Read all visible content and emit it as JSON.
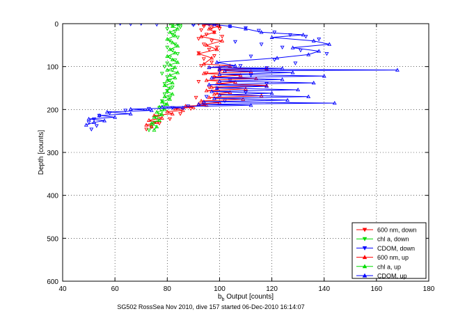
{
  "chart_data": {
    "type": "line",
    "title": "",
    "xlabel_main": "b",
    "xlabel_sub": "b",
    "xlabel_rest": " Output [counts]",
    "ylabel": "Depth [counts]",
    "footer": "SG502 RossSea Nov 2010, dive 157 started 06-Dec-2010 16:14:07",
    "xlim": [
      40,
      180
    ],
    "ylim": [
      0,
      600
    ],
    "y_reversed": true,
    "grid": true,
    "grid_style": "dotted",
    "legend_position": "bottom-right",
    "x_ticks": [
      40,
      60,
      80,
      100,
      120,
      140,
      160,
      180
    ],
    "y_ticks": [
      0,
      100,
      200,
      300,
      400,
      500,
      600
    ],
    "x_tick_labels": [
      "40",
      "60",
      "80",
      "100",
      "120",
      "140",
      "160",
      "180"
    ],
    "y_tick_labels": [
      "0",
      "100",
      "200",
      "300",
      "400",
      "500",
      "600"
    ],
    "series": [
      {
        "name": "600 nm, down",
        "color": "#ff0000",
        "marker": "triangle-down",
        "line": false,
        "points": [
          [
            92,
            0
          ],
          [
            96,
            2
          ],
          [
            99,
            4
          ],
          [
            94,
            6
          ],
          [
            97,
            10
          ],
          [
            100,
            12
          ],
          [
            93,
            15
          ],
          [
            98,
            20
          ],
          [
            95,
            25
          ],
          [
            101,
            30
          ],
          [
            92,
            35
          ],
          [
            97,
            40
          ],
          [
            94,
            48
          ],
          [
            99,
            55
          ],
          [
            96,
            60
          ],
          [
            92,
            68
          ],
          [
            98,
            75
          ],
          [
            94,
            82
          ],
          [
            97,
            90
          ],
          [
            93,
            98
          ],
          [
            100,
            105
          ],
          [
            95,
            115
          ],
          [
            98,
            125
          ],
          [
            92,
            135
          ],
          [
            96,
            148
          ],
          [
            99,
            160
          ],
          [
            91,
            172
          ],
          [
            94,
            185
          ],
          [
            89,
            198
          ],
          [
            85,
            210
          ],
          [
            81,
            222
          ],
          [
            77,
            232
          ],
          [
            74,
            240
          ],
          [
            72,
            246
          ]
        ]
      },
      {
        "name": "chl a, down",
        "color": "#00dd00",
        "marker": "triangle-down",
        "line": false,
        "points": [
          [
            81,
            0
          ],
          [
            84,
            2
          ],
          [
            82,
            4
          ],
          [
            85,
            8
          ],
          [
            80,
            12
          ],
          [
            83,
            18
          ],
          [
            82,
            25
          ],
          [
            84,
            32
          ],
          [
            81,
            40
          ],
          [
            83,
            48
          ],
          [
            80,
            55
          ],
          [
            82,
            62
          ],
          [
            84,
            70
          ],
          [
            81,
            78
          ],
          [
            83,
            85
          ],
          [
            80,
            92
          ],
          [
            79,
            100
          ],
          [
            82,
            108
          ],
          [
            78,
            116
          ],
          [
            80,
            124
          ],
          [
            81,
            132
          ],
          [
            79,
            140
          ],
          [
            82,
            148
          ],
          [
            80,
            156
          ],
          [
            79,
            164
          ],
          [
            81,
            172
          ],
          [
            78,
            180
          ],
          [
            79,
            188
          ],
          [
            77,
            196
          ],
          [
            78,
            204
          ],
          [
            77,
            212
          ],
          [
            76,
            220
          ],
          [
            75,
            230
          ],
          [
            74,
            240
          ],
          [
            73,
            248
          ]
        ]
      },
      {
        "name": "CDOM, down",
        "color": "#0000ff",
        "marker": "triangle-down",
        "line": false,
        "points": [
          [
            62,
            0
          ],
          [
            66,
            1
          ],
          [
            70,
            0
          ],
          [
            76,
            2
          ],
          [
            84,
            0
          ],
          [
            90,
            3
          ],
          [
            96,
            2
          ],
          [
            104,
            6
          ],
          [
            110,
            10
          ],
          [
            115,
            16
          ],
          [
            121,
            20
          ],
          [
            127,
            26
          ],
          [
            133,
            30
          ],
          [
            138,
            36
          ],
          [
            106,
            42
          ],
          [
            116,
            48
          ],
          [
            124,
            55
          ],
          [
            131,
            62
          ],
          [
            141,
            70
          ],
          [
            112,
            76
          ],
          [
            121,
            84
          ],
          [
            129,
            92
          ],
          [
            108,
            98
          ],
          [
            118,
            103
          ],
          [
            100,
            110
          ],
          [
            112,
            120
          ],
          [
            104,
            132
          ],
          [
            118,
            140
          ],
          [
            99,
            150
          ],
          [
            110,
            160
          ],
          [
            95,
            170
          ],
          [
            102,
            180
          ],
          [
            88,
            192
          ],
          [
            82,
            196
          ],
          [
            73,
            198
          ],
          [
            64,
            202
          ],
          [
            58,
            208
          ],
          [
            54,
            214
          ],
          [
            52,
            222
          ],
          [
            50,
            230
          ],
          [
            53,
            238
          ],
          [
            51,
            246
          ]
        ]
      },
      {
        "name": "600 nm, up",
        "color": "#ff0000",
        "marker": "triangle-up",
        "line": true,
        "points": [
          [
            74,
            240
          ],
          [
            72,
            236
          ],
          [
            76,
            230
          ],
          [
            73,
            225
          ],
          [
            78,
            220
          ],
          [
            75,
            214
          ],
          [
            82,
            210
          ],
          [
            80,
            205
          ],
          [
            86,
            202
          ],
          [
            83,
            198
          ],
          [
            90,
            195
          ],
          [
            87,
            192
          ],
          [
            95,
            190
          ],
          [
            92,
            187
          ],
          [
            100,
            184
          ],
          [
            93,
            180
          ],
          [
            109,
            176
          ],
          [
            96,
            172
          ],
          [
            116,
            168
          ],
          [
            98,
            164
          ],
          [
            104,
            160
          ],
          [
            95,
            156
          ],
          [
            110,
            152
          ],
          [
            97,
            148
          ],
          [
            118,
            144
          ],
          [
            99,
            140
          ],
          [
            106,
            136
          ],
          [
            95,
            132
          ],
          [
            114,
            128
          ],
          [
            98,
            124
          ],
          [
            108,
            120
          ],
          [
            94,
            116
          ],
          [
            112,
            112
          ],
          [
            100,
            108
          ],
          [
            118,
            105
          ],
          [
            96,
            102
          ],
          [
            104,
            98
          ],
          [
            94,
            94
          ],
          [
            97,
            80
          ],
          [
            92,
            70
          ],
          [
            99,
            60
          ],
          [
            95,
            50
          ],
          [
            101,
            40
          ],
          [
            93,
            30
          ],
          [
            98,
            20
          ],
          [
            96,
            12
          ],
          [
            100,
            6
          ],
          [
            94,
            2
          ],
          [
            98,
            0
          ]
        ]
      },
      {
        "name": "chl a, up",
        "color": "#00dd00",
        "marker": "triangle-up",
        "line": true,
        "points": [
          [
            75,
            248
          ],
          [
            76,
            240
          ],
          [
            74,
            232
          ],
          [
            77,
            225
          ],
          [
            75,
            218
          ],
          [
            78,
            212
          ],
          [
            76,
            206
          ],
          [
            79,
            200
          ],
          [
            77,
            194
          ],
          [
            80,
            188
          ],
          [
            78,
            182
          ],
          [
            81,
            176
          ],
          [
            79,
            170
          ],
          [
            82,
            164
          ],
          [
            80,
            158
          ],
          [
            81,
            150
          ],
          [
            79,
            144
          ],
          [
            82,
            138
          ],
          [
            80,
            132
          ],
          [
            83,
            126
          ],
          [
            81,
            120
          ],
          [
            84,
            114
          ],
          [
            80,
            108
          ],
          [
            83,
            102
          ],
          [
            81,
            96
          ],
          [
            84,
            90
          ],
          [
            82,
            84
          ],
          [
            80,
            76
          ],
          [
            83,
            68
          ],
          [
            81,
            60
          ],
          [
            84,
            52
          ],
          [
            82,
            44
          ],
          [
            80,
            36
          ],
          [
            83,
            28
          ],
          [
            81,
            20
          ],
          [
            84,
            12
          ],
          [
            82,
            6
          ],
          [
            85,
            0
          ]
        ]
      },
      {
        "name": "CDOM, up",
        "color": "#0000ff",
        "marker": "triangle-up",
        "line": true,
        "points": [
          [
            49,
            236
          ],
          [
            52,
            230
          ],
          [
            56,
            226
          ],
          [
            50,
            222
          ],
          [
            60,
            218
          ],
          [
            54,
            214
          ],
          [
            66,
            210
          ],
          [
            57,
            206
          ],
          [
            74,
            202
          ],
          [
            66,
            199
          ],
          [
            86,
            196
          ],
          [
            78,
            194
          ],
          [
            112,
            190
          ],
          [
            92,
            188
          ],
          [
            144,
            185
          ],
          [
            94,
            182
          ],
          [
            126,
            178
          ],
          [
            98,
            174
          ],
          [
            134,
            170
          ],
          [
            100,
            166
          ],
          [
            120,
            162
          ],
          [
            97,
            158
          ],
          [
            130,
            154
          ],
          [
            99,
            150
          ],
          [
            118,
            146
          ],
          [
            96,
            142
          ],
          [
            136,
            138
          ],
          [
            100,
            134
          ],
          [
            124,
            130
          ],
          [
            97,
            126
          ],
          [
            140,
            122
          ],
          [
            100,
            118
          ],
          [
            128,
            114
          ],
          [
            102,
            110
          ],
          [
            168,
            108
          ],
          [
            100,
            106
          ],
          [
            124,
            104
          ],
          [
            96,
            102
          ],
          [
            106,
            98
          ],
          [
            99,
            90
          ],
          [
            122,
            80
          ],
          [
            134,
            72
          ],
          [
            138,
            64
          ],
          [
            128,
            56
          ],
          [
            142,
            48
          ],
          [
            136,
            40
          ],
          [
            120,
            32
          ],
          [
            132,
            26
          ],
          [
            116,
            20
          ],
          [
            110,
            12
          ],
          [
            104,
            6
          ],
          [
            98,
            2
          ],
          [
            90,
            0
          ]
        ]
      }
    ]
  }
}
